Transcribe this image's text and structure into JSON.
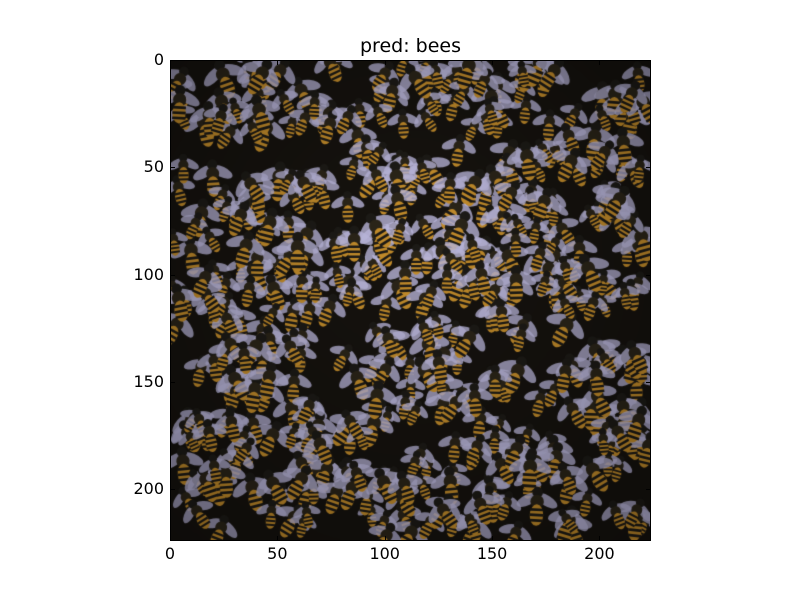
{
  "figure": {
    "title": "pred: bees"
  },
  "axes": {
    "xlim": [
      0,
      224
    ],
    "ylim": [
      224,
      0
    ],
    "x_ticks": [
      "0",
      "50",
      "100",
      "150",
      "200"
    ],
    "x_tick_values": [
      0,
      50,
      100,
      150,
      200
    ],
    "y_ticks": [
      "0",
      "50",
      "100",
      "150",
      "200"
    ],
    "y_tick_values": [
      0,
      50,
      100,
      150,
      200
    ],
    "image_subject": "dense swarm of honey bees"
  },
  "colors": {
    "background": "#ffffff",
    "axis": "#000000",
    "bee_body_dark": "#1c1a16",
    "bee_stripe": "#c08a2a",
    "bee_wing": "#b8b4d8"
  }
}
